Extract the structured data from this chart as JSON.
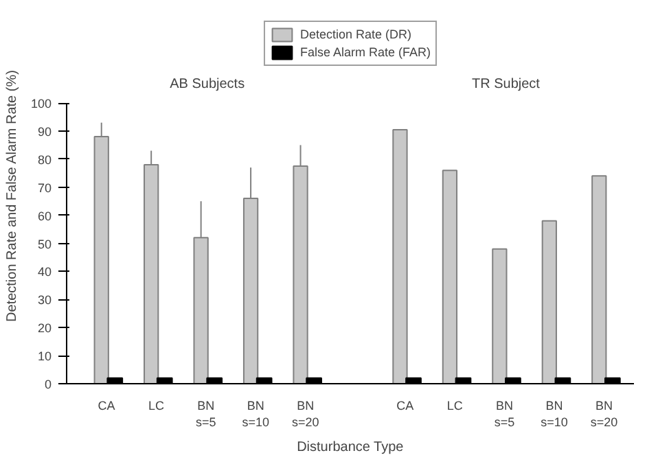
{
  "chart_data": {
    "type": "bar",
    "xlabel": "Disturbance Type",
    "ylabel": "Detection Rate and False Alarm Rate (%)",
    "categories": [
      "CA",
      "LC",
      "BN\ns=5",
      "BN\ns=10",
      "BN\ns=20",
      null,
      "CA",
      "LC",
      "BN\ns=5",
      "BN\ns=10",
      "BN\ns=20"
    ],
    "series": [
      {
        "name": "Detection Rate (DR)",
        "color": "#c8c8c8",
        "values": [
          88,
          78,
          52,
          66,
          77.5,
          null,
          90.5,
          76,
          48,
          58,
          74
        ],
        "errors": [
          5,
          5,
          13,
          11,
          7.5,
          null,
          null,
          null,
          null,
          null,
          null
        ]
      },
      {
        "name": "False Alarm Rate (FAR)",
        "color": "#000000",
        "values": [
          2,
          2,
          2,
          2,
          2,
          null,
          2,
          2,
          2,
          2,
          2
        ]
      }
    ],
    "annotations": [
      "AB Subjects",
      "TR Subject"
    ],
    "ylim": [
      0,
      100
    ],
    "yticks": [
      0,
      10,
      20,
      30,
      40,
      50,
      60,
      70,
      80,
      90,
      100
    ],
    "grid": false,
    "legend": "top"
  }
}
